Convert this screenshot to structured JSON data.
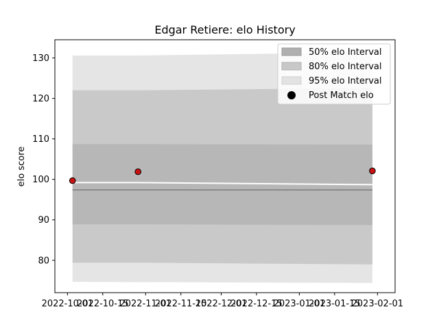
{
  "chart_data": {
    "type": "area",
    "title": "Edgar Retiere: elo History",
    "xlabel": "",
    "ylabel": "elo score",
    "xlim": [
      "2022-09-26",
      "2023-02-08"
    ],
    "ylim": [
      72,
      134.5
    ],
    "x_ticks": [
      "2022-10-01",
      "2022-10-15",
      "2022-11-01",
      "2022-11-15",
      "2022-12-01",
      "2022-12-15",
      "2023-01-01",
      "2023-01-15",
      "2023-02-01"
    ],
    "y_ticks": [
      80,
      90,
      100,
      110,
      120,
      130
    ],
    "legend_position": "top-right",
    "band_dates": [
      "2022-10-03",
      "2022-10-29",
      "2023-01-30"
    ],
    "series": [
      {
        "name": "50% elo Interval",
        "color": "#b0b0b0",
        "lower": [
          88.9,
          88.9,
          88.7
        ],
        "upper": [
          108.7,
          108.7,
          108.6
        ]
      },
      {
        "name": "80% elo Interval",
        "color": "#c8c8c8",
        "lower": [
          79.4,
          79.4,
          79.0
        ],
        "upper": [
          122.0,
          122.0,
          122.6
        ]
      },
      {
        "name": "95% elo Interval",
        "color": "#e3e3e3",
        "lower": [
          74.7,
          74.6,
          74.4
        ],
        "upper": [
          130.6,
          130.6,
          131.4
        ]
      },
      {
        "name": "Post Match elo",
        "color": "#cc1111",
        "marker": "circle",
        "x": [
          "2022-10-03",
          "2022-10-29",
          "2023-01-30"
        ],
        "y": [
          99.7,
          101.9,
          102.1
        ]
      }
    ],
    "mean_line": {
      "color": "#ffffff",
      "x": [
        "2022-10-03",
        "2022-10-29",
        "2023-01-30"
      ],
      "y": [
        99.2,
        99.2,
        98.7
      ]
    },
    "reference_line": {
      "color": "#808080",
      "y": 97.4
    }
  }
}
